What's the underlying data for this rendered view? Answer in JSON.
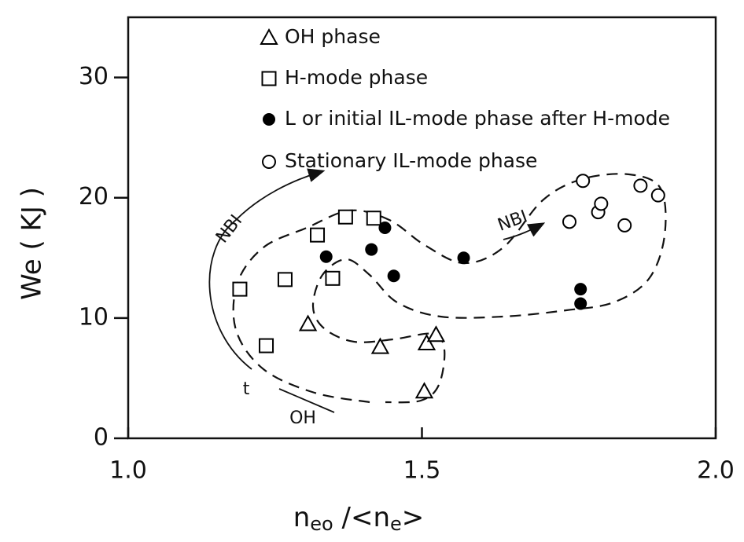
{
  "chart_data": {
    "type": "scatter",
    "x_label": [
      "n",
      "eo",
      " /<n",
      "e",
      ">"
    ],
    "y_label": "We ( KJ )",
    "xlim": [
      1.0,
      2.0
    ],
    "ylim": [
      0,
      35
    ],
    "xticks": [
      {
        "value": 1.0,
        "label": "1.0"
      },
      1.5,
      {
        "value": 2.0,
        "label": "2.0"
      }
    ],
    "yticks": [
      0,
      10,
      20,
      30
    ],
    "series": [
      {
        "name": "OH phase",
        "marker": "triangle",
        "color": "#000000",
        "x": [
          1.306,
          1.429,
          1.508,
          1.524,
          1.504
        ],
        "values": [
          9.5,
          7.6,
          7.9,
          8.6,
          3.9
        ]
      },
      {
        "name": "H-mode phase",
        "marker": "square",
        "color": "#000000",
        "x": [
          1.19,
          1.235,
          1.267,
          1.322,
          1.37,
          1.418,
          1.348
        ],
        "values": [
          12.4,
          7.7,
          13.2,
          16.9,
          18.4,
          18.3,
          13.3
        ]
      },
      {
        "name": "L or initial IL-mode phase after H-mode",
        "marker": "filled-circle",
        "color": "#000000",
        "x": [
          1.337,
          1.414,
          1.437,
          1.452,
          1.571,
          1.77,
          1.77
        ],
        "values": [
          15.1,
          15.7,
          17.5,
          13.5,
          15.0,
          12.4,
          11.2
        ]
      },
      {
        "name": "Stationary IL-mode phase",
        "marker": "open-circle",
        "color": "#000000",
        "x": [
          1.774,
          1.751,
          1.8,
          1.805,
          1.845,
          1.872,
          1.902
        ],
        "values": [
          21.4,
          18.0,
          18.8,
          19.5,
          17.7,
          21.0,
          20.2
        ]
      }
    ],
    "annotations": [
      "NBI",
      "NBI",
      "t",
      "OH"
    ]
  }
}
